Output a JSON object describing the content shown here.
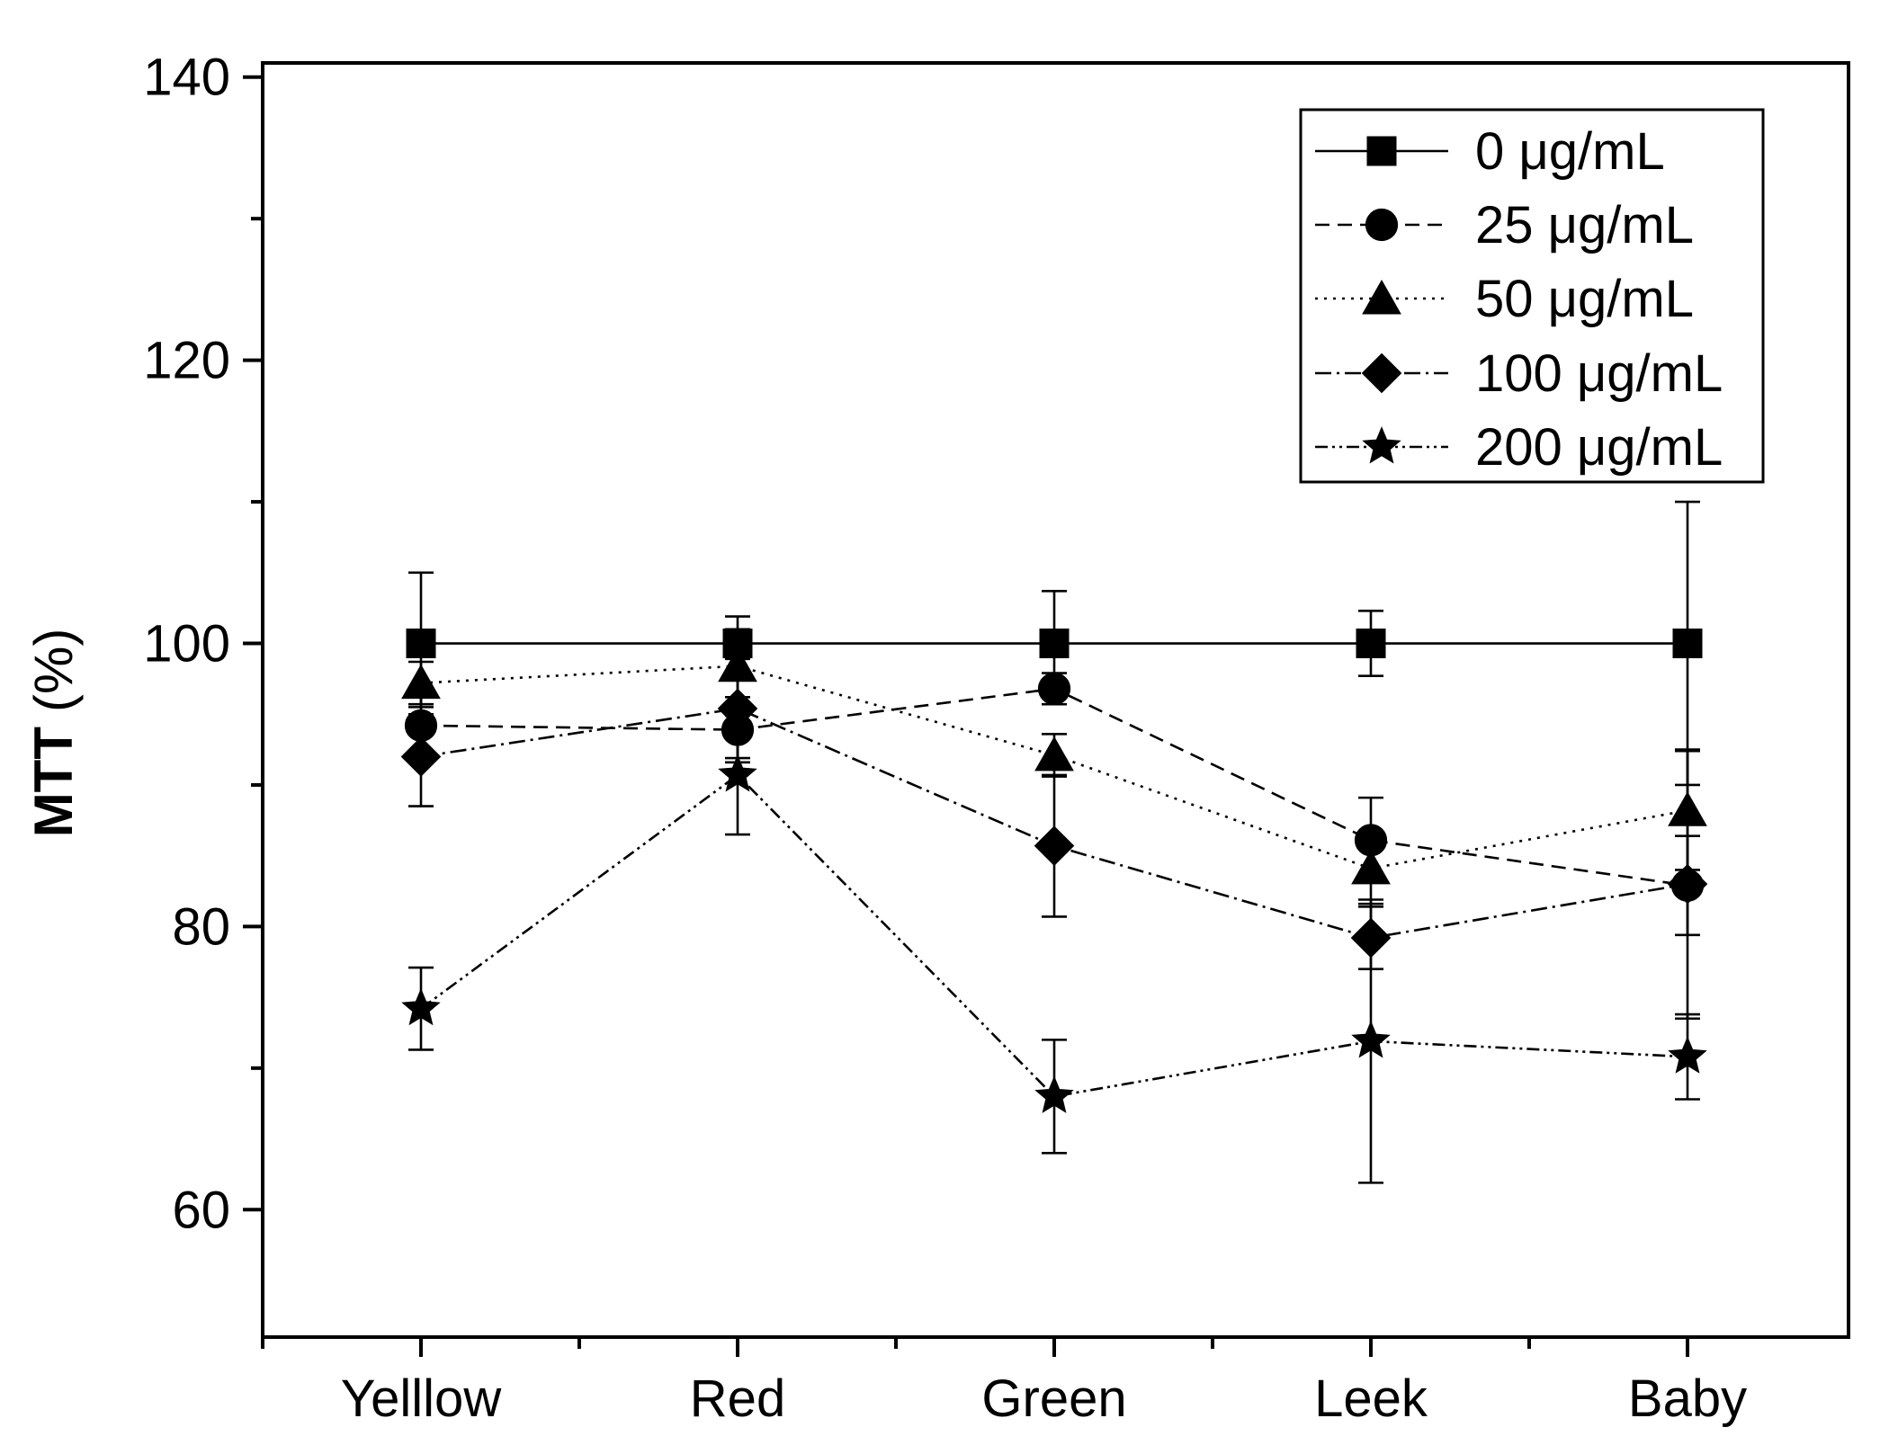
{
  "chart_data": {
    "type": "line",
    "title": "",
    "xlabel": "",
    "ylabel": "MTT (%)",
    "ylabel_main": "MTT",
    "ylabel_unit": "(%)",
    "categories": [
      "Yelllow",
      "Red",
      "Green",
      "Leek",
      "Baby"
    ],
    "ylim": [
      51,
      141
    ],
    "yticks": [
      60,
      80,
      100,
      120,
      140
    ],
    "legend_position": "top-right",
    "grid": false,
    "series": [
      {
        "name": "0 μg/mL",
        "marker": "square",
        "dash": "solid",
        "values": [
          100,
          100,
          100,
          100,
          100
        ],
        "errors": [
          5,
          1,
          3.7,
          2.3,
          10
        ]
      },
      {
        "name": "25 μg/mL",
        "marker": "circle",
        "dash": "dashed",
        "values": [
          94.2,
          93.9,
          96.8,
          86.1,
          82.9
        ],
        "errors": [
          2.5,
          2.3,
          1.1,
          3.0,
          3.5
        ]
      },
      {
        "name": "50 μg/mL",
        "marker": "triangle",
        "dash": "dotted",
        "values": [
          97.2,
          98.4,
          92.1,
          84.1,
          88.2
        ],
        "errors": [
          1.5,
          3.5,
          1.5,
          2.5,
          4.2
        ]
      },
      {
        "name": "100 μg/mL",
        "marker": "diamond",
        "dash": "dashdot",
        "values": [
          92.0,
          95.4,
          85.7,
          79.2,
          83.0
        ],
        "errors": [
          3.5,
          3.5,
          5.0,
          2.2,
          9.5
        ]
      },
      {
        "name": "200 μg/mL",
        "marker": "star",
        "dash": "dashdotdot",
        "values": [
          74.2,
          90.7,
          68.0,
          71.9,
          70.8
        ],
        "errors": [
          2.9,
          4.2,
          4.0,
          10.0,
          3.0
        ]
      }
    ]
  }
}
